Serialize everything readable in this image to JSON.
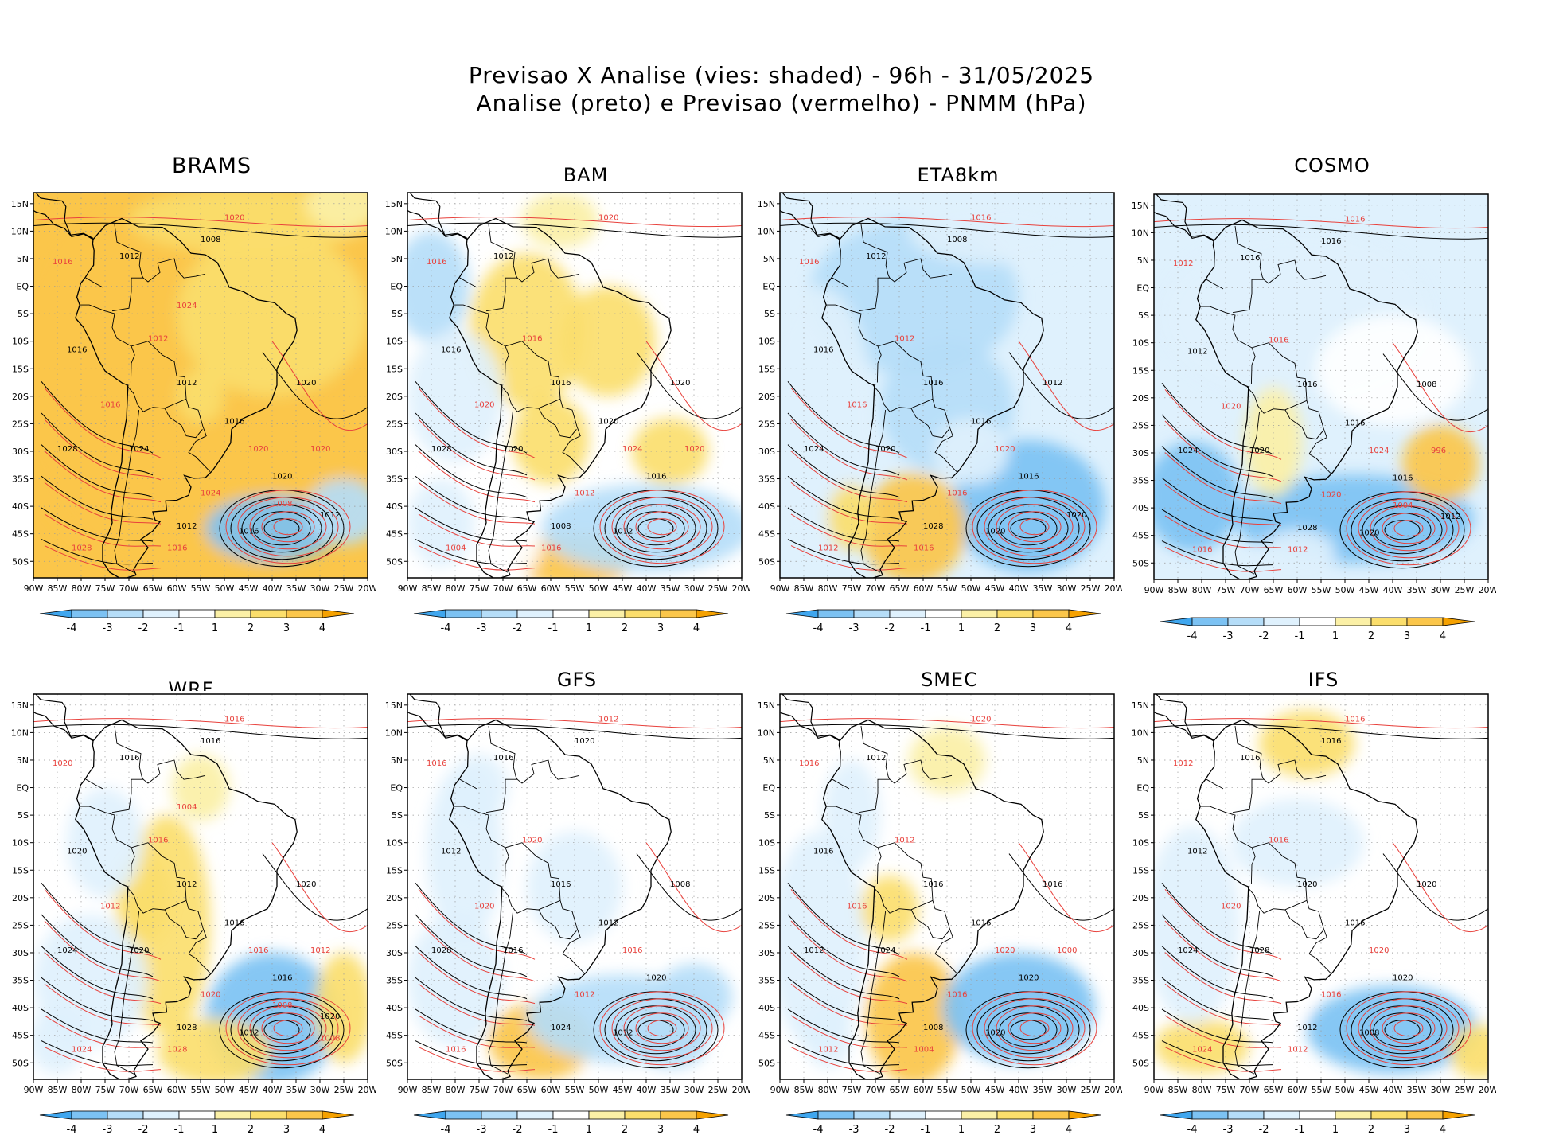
{
  "header": {
    "line1": "Previsao X Analise (vies: shaded) - 96h - 31/05/2025",
    "line2": "Analise (preto) e Previsao (vermelho) - PNMM (hPa)"
  },
  "colors": {
    "analysis_contour": "#000000",
    "forecast_contour": "#e8413c",
    "bias_neg4": "#3fa6ee",
    "bias_neg3": "#7cc2f3",
    "bias_neg2": "#b5ddf8",
    "bias_neg1": "#dff1fd",
    "bias_zero": "#ffffff",
    "bias_pos1": "#fbf0a6",
    "bias_pos2": "#fbde6c",
    "bias_pos3": "#fbc64a",
    "bias_pos4": "#f5a100"
  },
  "axes": {
    "lat_ticks": [
      "15N",
      "10N",
      "5N",
      "EQ",
      "5S",
      "10S",
      "15S",
      "20S",
      "25S",
      "30S",
      "35S",
      "40S",
      "45S",
      "50S"
    ],
    "lon_ticks": [
      "90W",
      "85W",
      "80W",
      "75W",
      "70W",
      "65W",
      "60W",
      "55W",
      "50W",
      "45W",
      "40W",
      "35W",
      "30W",
      "25W",
      "20W"
    ]
  },
  "colorbar": {
    "labels": [
      "-4",
      "-3",
      "-2",
      "-1",
      "1",
      "2",
      "3",
      "4"
    ]
  },
  "panels": [
    {
      "model": "BRAMS",
      "dominant_bias": 3.2,
      "labels_black": [
        "1016",
        "1012",
        "1012",
        "1016",
        "1020",
        "1024",
        "1028",
        "1012",
        "1016",
        "1020",
        "1008",
        "1012"
      ],
      "labels_red": [
        "1020",
        "1016",
        "1012",
        "1016",
        "1020",
        "1024",
        "1028",
        "1016",
        "1020",
        "1008",
        "1024"
      ]
    },
    {
      "model": "BAM",
      "dominant_bias": 0.8,
      "labels_black": [
        "1016",
        "1012",
        "1016",
        "1020",
        "1016",
        "1020",
        "1028",
        "1008",
        "1012",
        "1020"
      ],
      "labels_red": [
        "1020",
        "1016",
        "1016",
        "1020",
        "1024",
        "1012",
        "1004",
        "1016",
        "1020"
      ]
    },
    {
      "model": "ETA8km",
      "dominant_bias": -1.4,
      "labels_black": [
        "1016",
        "1012",
        "1016",
        "1016",
        "1016",
        "1020",
        "1024",
        "1028",
        "1020",
        "1012",
        "1008",
        "1020"
      ],
      "labels_red": [
        "1016",
        "1016",
        "1012",
        "1016",
        "1020",
        "1016",
        "1012",
        "1016"
      ]
    },
    {
      "model": "COSMO",
      "dominant_bias": -1.1,
      "labels_black": [
        "1012",
        "1016",
        "1016",
        "1016",
        "1016",
        "1020",
        "1024",
        "1028",
        "1020",
        "1008",
        "1016",
        "1012"
      ],
      "labels_red": [
        "1016",
        "1012",
        "1016",
        "1020",
        "1024",
        "1020",
        "1016",
        "1012",
        "996",
        "1004"
      ]
    },
    {
      "model": "WRF",
      "dominant_bias": -0.6,
      "labels_black": [
        "1020",
        "1016",
        "1012",
        "1016",
        "1016",
        "1020",
        "1024",
        "1028",
        "1012",
        "1020",
        "1016",
        "1020"
      ],
      "labels_red": [
        "1016",
        "1020",
        "1016",
        "1012",
        "1016",
        "1020",
        "1024",
        "1028",
        "1012",
        "1008",
        "1004",
        "1008"
      ]
    },
    {
      "model": "GFS",
      "dominant_bias": -0.4,
      "labels_black": [
        "1012",
        "1016",
        "1016",
        "1012",
        "1020",
        "1016",
        "1028",
        "1024",
        "1012",
        "1008",
        "1020"
      ],
      "labels_red": [
        "1012",
        "1016",
        "1020",
        "1020",
        "1016",
        "1012",
        "1016"
      ]
    },
    {
      "model": "SMEC",
      "dominant_bias": -0.5,
      "labels_black": [
        "1016",
        "1012",
        "1016",
        "1016",
        "1020",
        "1024",
        "1012",
        "1008",
        "1020",
        "1016"
      ],
      "labels_red": [
        "1020",
        "1016",
        "1012",
        "1016",
        "1020",
        "1016",
        "1012",
        "1004",
        "1000"
      ]
    },
    {
      "model": "IFS",
      "dominant_bias": -0.3,
      "labels_black": [
        "1012",
        "1016",
        "1020",
        "1016",
        "1020",
        "1028",
        "1024",
        "1012",
        "1008",
        "1020",
        "1016"
      ],
      "labels_red": [
        "1016",
        "1012",
        "1016",
        "1020",
        "1020",
        "1016",
        "1024",
        "1012"
      ]
    }
  ]
}
